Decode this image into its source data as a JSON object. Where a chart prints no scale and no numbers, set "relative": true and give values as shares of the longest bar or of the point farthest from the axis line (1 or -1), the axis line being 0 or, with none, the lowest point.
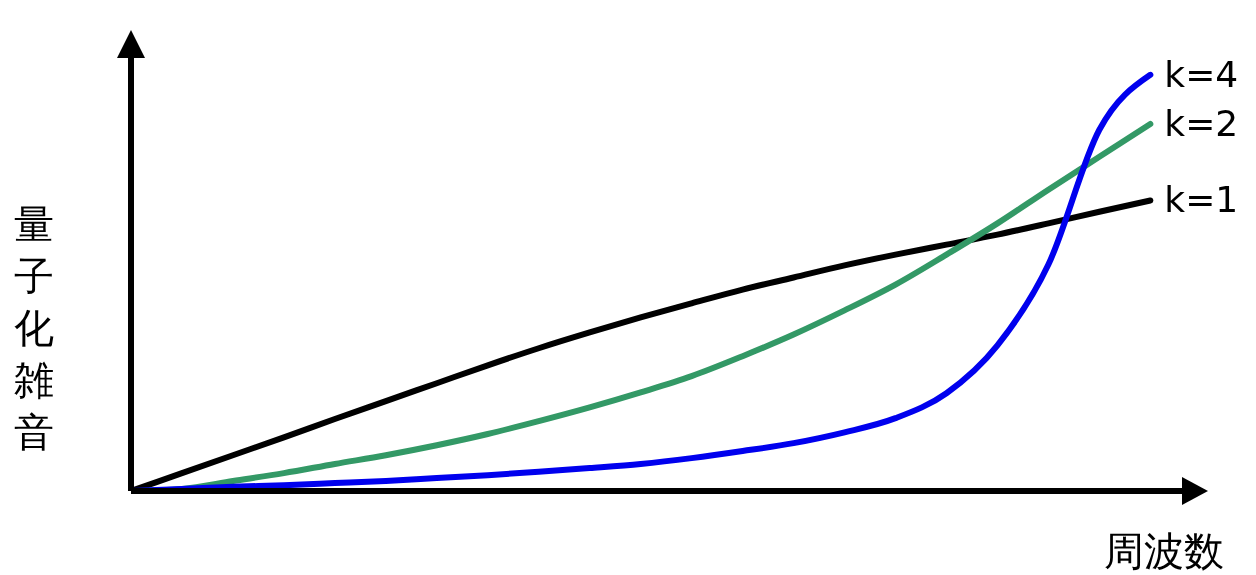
{
  "chart_data": {
    "type": "line",
    "relative": true,
    "xlabel": "周波数",
    "ylabel": "量子化雑音",
    "legend": false,
    "grid": false,
    "marker": "none",
    "line_style": "solid",
    "categories": [
      null,
      null,
      null,
      null,
      null,
      null,
      null,
      null,
      null,
      null,
      null,
      null,
      null,
      null,
      null,
      null,
      null,
      null,
      null,
      null,
      null
    ],
    "series": [
      {
        "name": "k=1",
        "color": "#000000",
        "values": [
          0,
          0.043,
          0.086,
          0.129,
          0.173,
          0.216,
          0.259,
          0.302,
          0.343,
          0.381,
          0.417,
          0.451,
          0.484,
          0.513,
          0.542,
          0.568,
          0.592,
          0.616,
          0.643,
          0.671,
          0.698
        ]
      },
      {
        "name": "k=2",
        "color": "#339966",
        "values": [
          0,
          0.005,
          0.024,
          0.043,
          0.065,
          0.086,
          0.11,
          0.137,
          0.168,
          0.201,
          0.237,
          0.276,
          0.324,
          0.376,
          0.434,
          0.496,
          0.568,
          0.643,
          0.724,
          0.803,
          0.882
        ]
      },
      {
        "name": "k=4",
        "color": "#0000ee",
        "values": [
          0,
          0.005,
          0.01,
          0.014,
          0.019,
          0.024,
          0.031,
          0.038,
          0.046,
          0.055,
          0.065,
          0.079,
          0.096,
          0.115,
          0.141,
          0.175,
          0.235,
          0.35,
          0.544,
          0.868,
          1
        ]
      }
    ]
  }
}
